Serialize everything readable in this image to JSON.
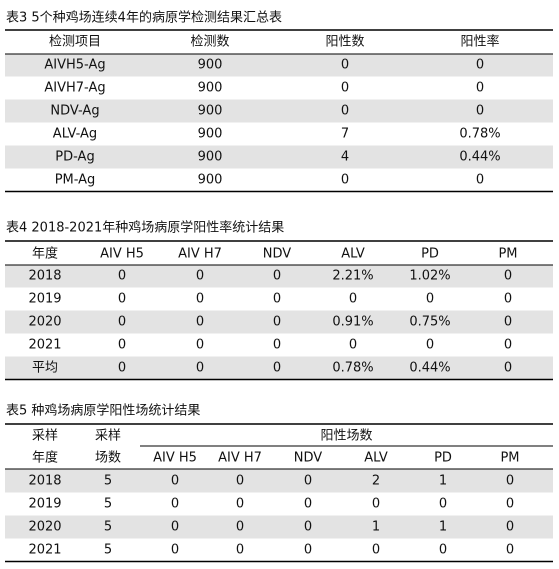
{
  "tables": [
    {
      "title": "表3 5个种鸡场连续4年的病原学检测结果汇总表",
      "header": [
        "检测项目",
        "检测数",
        "阳性数",
        "阳性率"
      ],
      "rows": [
        [
          "AIVH5-Ag",
          "900",
          "0",
          "0"
        ],
        [
          "AIVH7-Ag",
          "900",
          "0",
          "0"
        ],
        [
          "NDV-Ag",
          "900",
          "0",
          "0"
        ],
        [
          "ALV-Ag",
          "900",
          "7",
          "0.78%"
        ],
        [
          "PD-Ag",
          "900",
          "4",
          "0.44%"
        ],
        [
          "PM-Ag",
          "900",
          "0",
          "0"
        ]
      ]
    },
    {
      "title": "表4 2018-2021年种鸡场病原学阳性率统计结果",
      "header": [
        "年度",
        "AIV H5",
        "AIV H7",
        "NDV",
        "ALV",
        "PD",
        "PM"
      ],
      "rows": [
        [
          "2018",
          "0",
          "0",
          "0",
          "2.21%",
          "1.02%",
          "0"
        ],
        [
          "2019",
          "0",
          "0",
          "0",
          "0",
          "0",
          "0"
        ],
        [
          "2020",
          "0",
          "0",
          "0",
          "0.91%",
          "0.75%",
          "0"
        ],
        [
          "2021",
          "0",
          "0",
          "0",
          "0",
          "0",
          "0"
        ],
        [
          "平均",
          "0",
          "0",
          "0",
          "0.78%",
          "0.44%",
          "0"
        ]
      ]
    },
    {
      "title": "表5 种鸡场病原学阳性场统计结果",
      "header_top": [
        "采样",
        "采样",
        "阳性场数"
      ],
      "header": [
        "年度",
        "场数",
        "AIV H5",
        "AIV H7",
        "NDV",
        "ALV",
        "PD",
        "PM"
      ],
      "rows": [
        [
          "2018",
          "5",
          "0",
          "0",
          "0",
          "2",
          "1",
          "0"
        ],
        [
          "2019",
          "5",
          "0",
          "0",
          "0",
          "0",
          "0",
          "0"
        ],
        [
          "2020",
          "5",
          "0",
          "0",
          "0",
          "1",
          "1",
          "0"
        ],
        [
          "2021",
          "5",
          "0",
          "0",
          "0",
          "0",
          "0",
          "0"
        ]
      ]
    }
  ]
}
